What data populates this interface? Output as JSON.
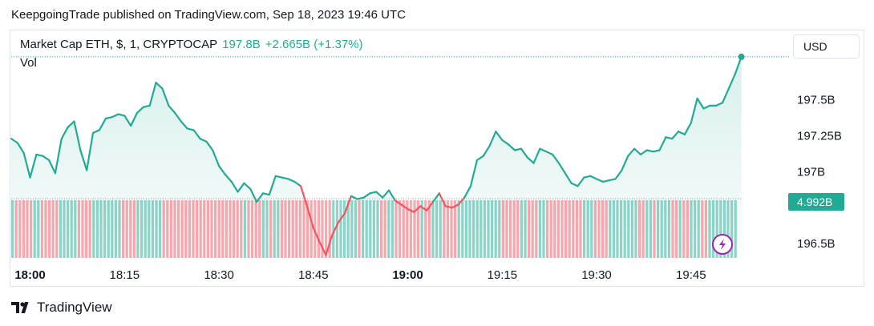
{
  "header": {
    "published_line": "KeepgoingTrade published on TradingView.com, Sep 18, 2023 19:46 UTC"
  },
  "legend": {
    "symbol": "Market Cap ETH, $, 1, CRYPTOCAP",
    "price": "197.8B",
    "change": "+2.665B (+1.37%)",
    "volume_label": "Vol"
  },
  "currency_button": {
    "label": "USD"
  },
  "volume_badge": {
    "label": "4.992B"
  },
  "footer": {
    "brand": "TradingView"
  },
  "colors": {
    "line": "#22ab94",
    "area": "#22ab94",
    "down": "#f7525f",
    "vol_up": "#22ab94",
    "vol_down": "#f7525f",
    "badge_bg": "#22ab94",
    "lightning_icon": "#9c27b0"
  },
  "chart_data": {
    "type": "area",
    "price_axis": {
      "ticks": [
        {
          "value": 196.5,
          "label": "196.5B"
        },
        {
          "value": 197.0,
          "label": "197B"
        },
        {
          "value": 197.25,
          "label": "197.25B"
        },
        {
          "value": 197.5,
          "label": "197.5B"
        }
      ],
      "hidden_tick": "196.75B",
      "ylim": [
        196.4,
        197.95
      ]
    },
    "time_axis": {
      "ticks": [
        {
          "label": "18:00",
          "bold": true
        },
        {
          "label": "18:15",
          "bold": false
        },
        {
          "label": "18:30",
          "bold": false
        },
        {
          "label": "18:45",
          "bold": false
        },
        {
          "label": "19:00",
          "bold": true
        },
        {
          "label": "19:15",
          "bold": false
        },
        {
          "label": "19:30",
          "bold": false
        },
        {
          "label": "19:45",
          "bold": false
        }
      ],
      "minutes_per_tick": 15,
      "start": "17:57"
    },
    "series": [
      {
        "name": "Market Cap ETH",
        "interval_minutes": 1,
        "values": [
          197.23,
          197.2,
          197.13,
          196.96,
          197.12,
          197.11,
          197.08,
          196.99,
          197.23,
          197.31,
          197.35,
          197.15,
          197.01,
          197.27,
          197.29,
          197.37,
          197.38,
          197.4,
          197.39,
          197.32,
          197.41,
          197.45,
          197.46,
          197.62,
          197.58,
          197.46,
          197.41,
          197.35,
          197.3,
          197.29,
          197.23,
          197.21,
          197.15,
          197.04,
          196.98,
          196.93,
          196.86,
          196.92,
          196.88,
          196.79,
          196.85,
          196.84,
          196.97,
          196.96,
          196.95,
          196.93,
          196.9,
          196.76,
          196.61,
          196.51,
          196.42,
          196.56,
          196.65,
          196.71,
          196.83,
          196.81,
          196.82,
          196.85,
          196.86,
          196.82,
          196.87,
          196.8,
          196.77,
          196.74,
          196.72,
          196.76,
          196.73,
          196.79,
          196.85,
          196.76,
          196.75,
          196.77,
          196.82,
          196.9,
          197.08,
          197.11,
          197.18,
          197.28,
          197.22,
          197.19,
          197.15,
          197.16,
          197.1,
          197.06,
          197.16,
          197.14,
          197.12,
          197.06,
          196.99,
          196.92,
          196.9,
          196.96,
          196.97,
          196.95,
          196.93,
          196.94,
          196.95,
          197.01,
          197.11,
          197.16,
          197.12,
          197.15,
          197.14,
          197.15,
          197.24,
          197.23,
          197.28,
          197.26,
          197.34,
          197.51,
          197.44,
          197.46,
          197.46,
          197.48,
          197.58,
          197.68,
          197.8
        ]
      }
    ]
  }
}
